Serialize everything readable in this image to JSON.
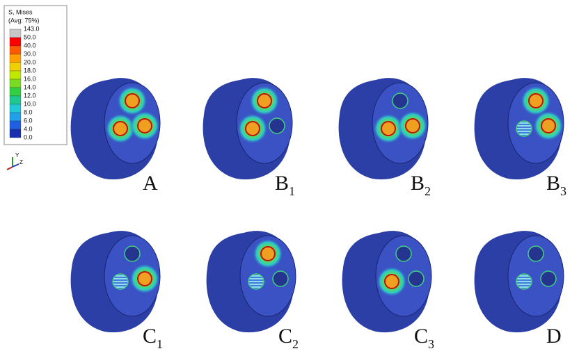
{
  "legend": {
    "title": "S, Mises",
    "subtitle": "(Avg: 75%)",
    "labels": [
      "143.0",
      "50.0",
      "40.0",
      "30.0",
      "20.0",
      "18.0",
      "16.0",
      "14.0",
      "12.0",
      "10.0",
      "8.0",
      "6.0",
      "4.0",
      "0.0"
    ]
  },
  "triad": {
    "y": "Y",
    "z": "Z"
  },
  "panels": [
    {
      "letter": "A"
    },
    {
      "letter": "B",
      "sub": "1"
    },
    {
      "letter": "B",
      "sub": "2"
    },
    {
      "letter": "B",
      "sub": "3"
    },
    {
      "letter": "C",
      "sub": "1"
    },
    {
      "letter": "C",
      "sub": "2"
    },
    {
      "letter": "C",
      "sub": "3"
    },
    {
      "letter": "D"
    }
  ]
}
